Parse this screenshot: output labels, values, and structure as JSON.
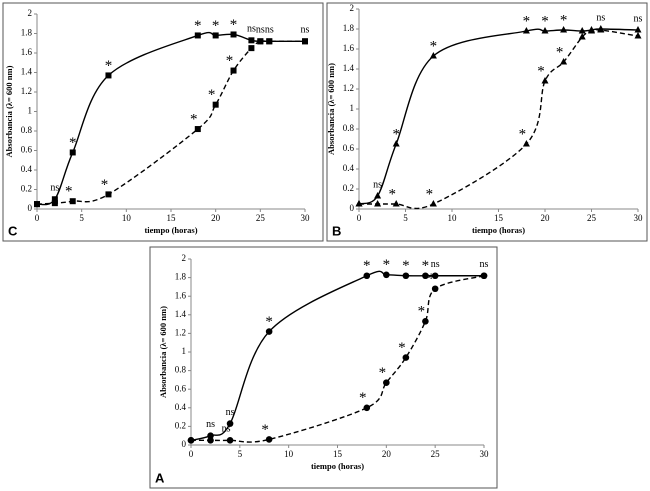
{
  "chart_data": [
    {
      "type": "line",
      "panel": "C",
      "xlabel": "tiempo (horas)",
      "ylabel": "Absorbancia (λ= 600 nm)",
      "x": [
        0,
        2,
        4,
        8,
        18,
        20,
        22,
        24,
        25,
        26,
        30
      ],
      "xlim": [
        0,
        30
      ],
      "xticks": [
        0,
        5,
        10,
        15,
        20,
        25,
        30
      ],
      "ylim": [
        0,
        2
      ],
      "yticks": [
        0,
        0.2,
        0.4,
        0.6,
        0.8,
        1,
        1.2,
        1.4,
        1.6,
        1.8,
        2
      ],
      "series": [
        {
          "color": "#000000",
          "line_style": "solid",
          "marker": "square",
          "values": [
            0.05,
            0.1,
            0.58,
            1.37,
            1.78,
            1.78,
            1.79,
            1.73,
            1.72,
            1.72,
            1.72
          ],
          "labels": [
            null,
            "ns",
            "*",
            "*",
            "*",
            "*",
            "*",
            "ns",
            "ns",
            "ns",
            "ns"
          ]
        },
        {
          "color": "#000000",
          "line_style": "dashed",
          "marker": "square",
          "values": [
            0.05,
            0.06,
            0.08,
            0.15,
            0.82,
            1.07,
            1.42,
            1.65,
            1.72,
            1.72,
            1.72
          ],
          "labels": [
            null,
            null,
            "*",
            "*",
            "*",
            "*",
            "*",
            null,
            null,
            null,
            null
          ]
        }
      ]
    },
    {
      "type": "line",
      "panel": "B",
      "xlabel": "tiempo (horas)",
      "ylabel": "Absorbancia (λ= 600 nm)",
      "x": [
        0,
        2,
        4,
        8,
        18,
        20,
        22,
        24,
        25,
        26,
        30
      ],
      "xlim": [
        0,
        30
      ],
      "xticks": [
        0,
        5,
        10,
        15,
        20,
        25,
        30
      ],
      "ylim": [
        0,
        2
      ],
      "yticks": [
        0,
        0.2,
        0.4,
        0.6,
        0.8,
        1,
        1.2,
        1.4,
        1.6,
        1.8,
        2
      ],
      "series": [
        {
          "color": "#000000",
          "line_style": "solid",
          "marker": "triangle",
          "values": [
            0.05,
            0.13,
            0.65,
            1.53,
            1.78,
            1.78,
            1.79,
            1.78,
            1.79,
            1.8,
            1.79
          ],
          "labels": [
            null,
            "ns",
            "*",
            "*",
            "*",
            "*",
            "*",
            null,
            null,
            "ns",
            "ns"
          ]
        },
        {
          "color": "#000000",
          "line_style": "dashed",
          "marker": "triangle",
          "values": [
            0.05,
            0.05,
            0.05,
            0.05,
            0.65,
            1.28,
            1.47,
            1.72,
            1.78,
            1.79,
            1.73
          ],
          "labels": [
            null,
            null,
            "*",
            "*",
            "*",
            "*",
            "*",
            null,
            null,
            null,
            null
          ]
        }
      ]
    },
    {
      "type": "line",
      "panel": "A",
      "xlabel": "tiempo (horas)",
      "ylabel": "Absorbancia (λ= 600 nm)",
      "x": [
        0,
        2,
        4,
        8,
        18,
        20,
        22,
        24,
        25,
        30
      ],
      "xlim": [
        0,
        30
      ],
      "xticks": [
        0,
        5,
        10,
        15,
        20,
        25,
        30
      ],
      "ylim": [
        0,
        2
      ],
      "yticks": [
        0,
        0.2,
        0.4,
        0.6,
        0.8,
        1,
        1.2,
        1.4,
        1.6,
        1.8,
        2
      ],
      "series": [
        {
          "color": "#000000",
          "line_style": "solid",
          "marker": "circle",
          "values": [
            0.05,
            0.1,
            0.23,
            1.22,
            1.82,
            1.83,
            1.82,
            1.82,
            1.82,
            1.82
          ],
          "labels": [
            null,
            "ns",
            "ns",
            "*",
            "*",
            "*",
            "*",
            "*",
            "ns",
            "ns"
          ]
        },
        {
          "color": "#000000",
          "line_style": "dashed",
          "marker": "circle",
          "values": [
            0.05,
            0.05,
            0.05,
            0.06,
            0.4,
            0.67,
            0.94,
            1.33,
            1.68,
            1.82
          ],
          "labels": [
            null,
            null,
            "ns",
            "*",
            "*",
            "*",
            "*",
            "*",
            "*",
            null
          ]
        }
      ]
    }
  ]
}
